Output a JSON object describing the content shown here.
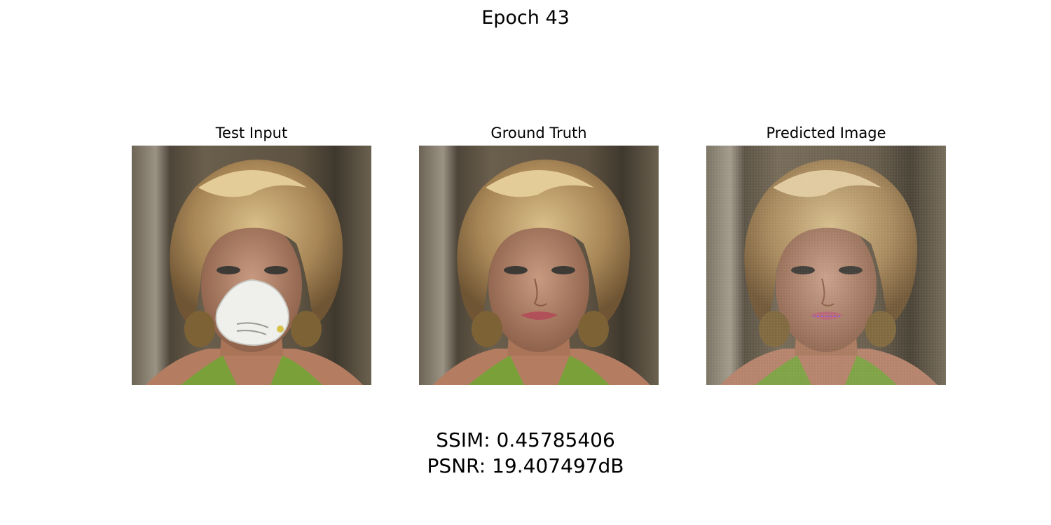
{
  "figure": {
    "title": "Epoch 43"
  },
  "panels": [
    {
      "title": "Test Input",
      "image": "portrait-with-mask"
    },
    {
      "title": "Ground Truth",
      "image": "portrait"
    },
    {
      "title": "Predicted Image",
      "image": "portrait-reconstructed"
    }
  ],
  "metrics": {
    "ssim": "SSIM: 0.45785406",
    "psnr": "PSNR: 19.407497dB"
  }
}
